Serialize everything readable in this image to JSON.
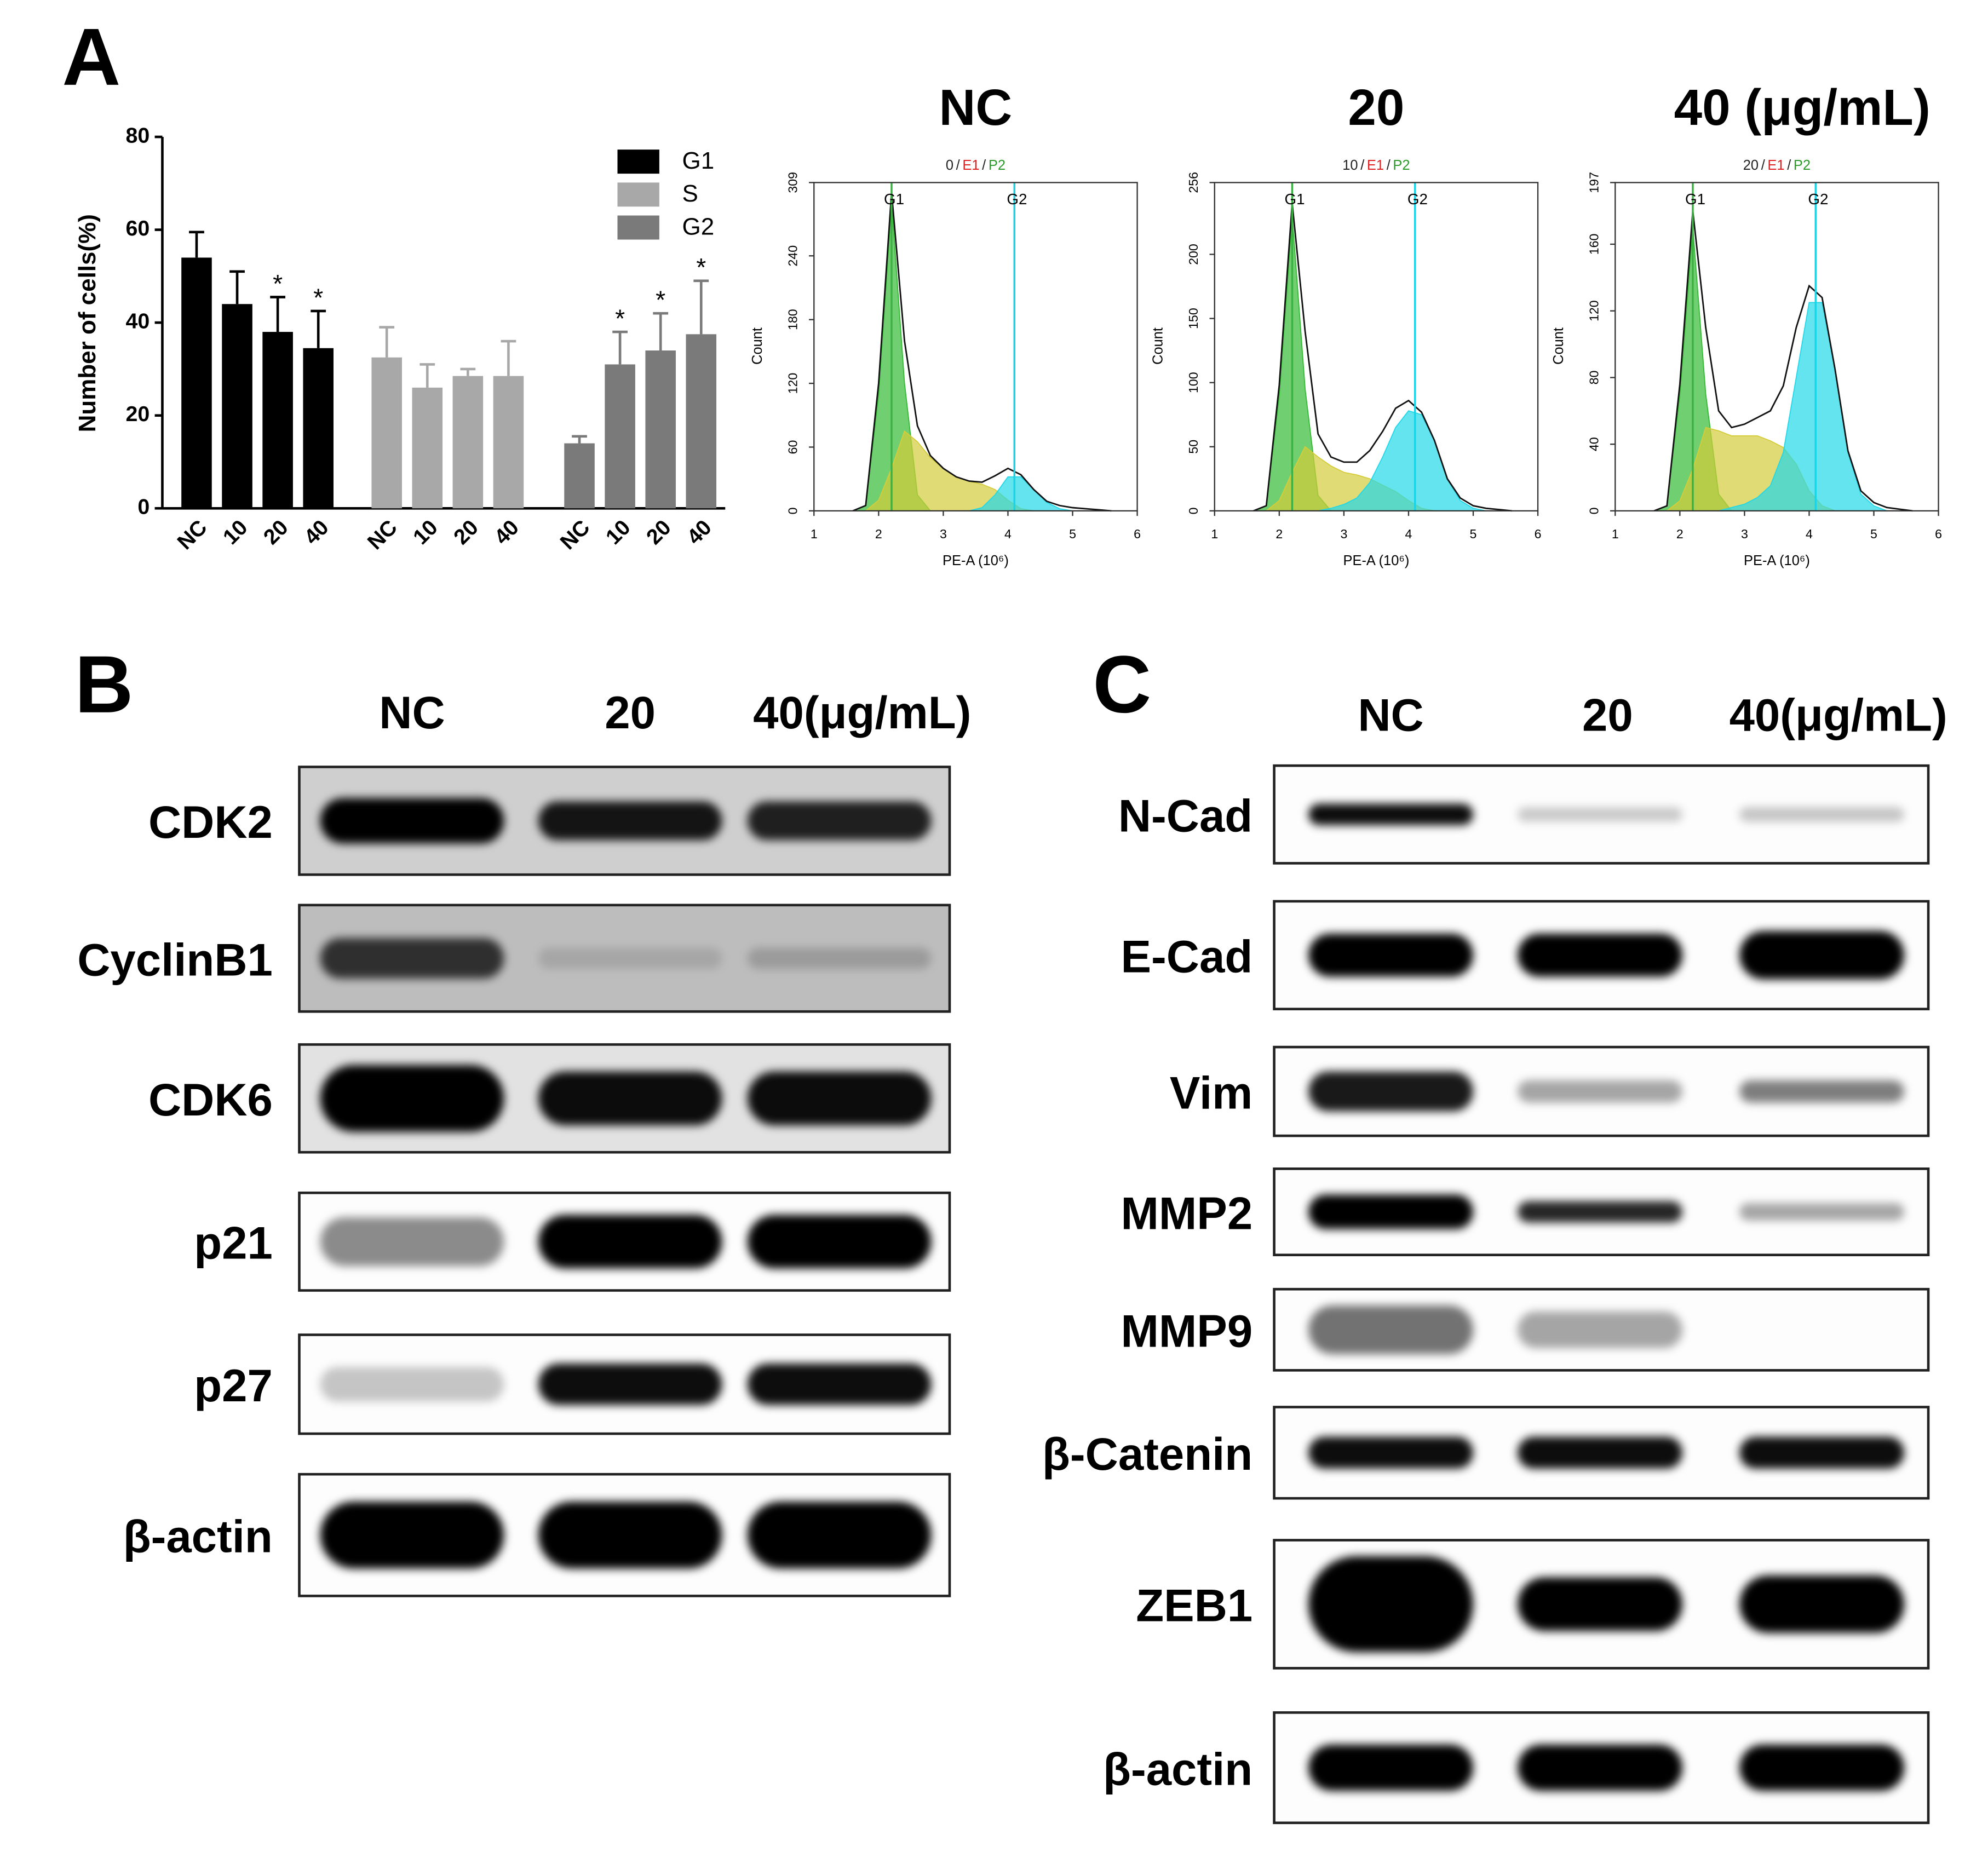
{
  "panel_labels": [
    "A",
    "B",
    "C"
  ],
  "chart_data": [
    {
      "type": "bar",
      "ylabel": "Number of cells(%)",
      "categories": [
        "NC",
        "10",
        "20",
        "40"
      ],
      "ylim": [
        0,
        80
      ],
      "yticks": [
        0,
        20,
        40,
        60,
        80
      ],
      "series": [
        {
          "name": "G1",
          "color": "#000000",
          "values": [
            54,
            44,
            38,
            34.5
          ],
          "errors": [
            5.5,
            7,
            7.5,
            8
          ],
          "significance": [
            null,
            null,
            "*",
            "*"
          ]
        },
        {
          "name": "S",
          "color": "#a8a8a8",
          "values": [
            32.5,
            26,
            28.5,
            28.5
          ],
          "errors": [
            6.5,
            5,
            1.5,
            7.5
          ],
          "significance": [
            null,
            null,
            null,
            null
          ]
        },
        {
          "name": "G2",
          "color": "#7a7a7a",
          "values": [
            14,
            31,
            34,
            37.5
          ],
          "errors": [
            1.5,
            7,
            8,
            11.5
          ],
          "significance": [
            null,
            "*",
            "*",
            "*"
          ]
        }
      ]
    },
    {
      "type": "histogram-fit",
      "title": "NC",
      "subtitle_parts": [
        "0",
        "/",
        "E1",
        "/",
        "P2"
      ],
      "xlabel": "PE-A (10⁶)",
      "ylabel": "Count",
      "xlim": [
        1,
        6
      ],
      "xticks": [
        1,
        2,
        3,
        4,
        5,
        6
      ],
      "ylim": [
        0,
        309
      ],
      "yticks": [
        0,
        60,
        120,
        180,
        240,
        309
      ],
      "gates": [
        {
          "label": "G1",
          "x": 2.2,
          "color": "#3cb043"
        },
        {
          "label": "G2",
          "x": 4.1,
          "color": "#19d3e6"
        }
      ],
      "x": [
        1.6,
        1.8,
        2.0,
        2.2,
        2.4,
        2.6,
        2.8,
        3.0,
        3.2,
        3.4,
        3.6,
        3.8,
        4.0,
        4.2,
        4.4,
        4.6,
        4.8,
        5.0,
        5.2,
        5.4,
        5.6
      ],
      "series": [
        {
          "color": "#33bb33",
          "values": [
            0,
            5,
            110,
            290,
            120,
            15,
            0,
            0,
            0,
            0,
            0,
            0,
            0,
            0,
            0,
            0,
            0,
            0,
            0,
            0,
            0
          ]
        },
        {
          "color": "#d4cc3a",
          "values": [
            0,
            0,
            10,
            40,
            75,
            65,
            50,
            40,
            32,
            28,
            25,
            20,
            10,
            2,
            0,
            0,
            0,
            0,
            0,
            0,
            0
          ]
        },
        {
          "color": "#22d8e8",
          "values": [
            0,
            0,
            0,
            0,
            0,
            0,
            0,
            0,
            0,
            0,
            3,
            15,
            32,
            32,
            20,
            8,
            2,
            0,
            0,
            0,
            0
          ]
        },
        {
          "color": "#111111",
          "values": [
            0,
            5,
            120,
            300,
            160,
            80,
            52,
            40,
            32,
            28,
            27,
            33,
            40,
            34,
            20,
            9,
            5,
            3,
            2,
            1,
            0
          ]
        }
      ]
    },
    {
      "type": "histogram-fit",
      "title": "20",
      "subtitle_parts": [
        "10",
        "/",
        "E1",
        "/",
        "P2"
      ],
      "xlabel": "PE-A (10⁶)",
      "ylabel": "Count",
      "xlim": [
        1,
        6
      ],
      "xticks": [
        1,
        2,
        3,
        4,
        5,
        6
      ],
      "ylim": [
        0,
        256
      ],
      "yticks": [
        0,
        50,
        100,
        150,
        200,
        256
      ],
      "gates": [
        {
          "label": "G1",
          "x": 2.2,
          "color": "#3cb043"
        },
        {
          "label": "G2",
          "x": 4.1,
          "color": "#19d3e6"
        }
      ],
      "x": [
        1.6,
        1.8,
        2.0,
        2.2,
        2.4,
        2.6,
        2.8,
        3.0,
        3.2,
        3.4,
        3.6,
        3.8,
        4.0,
        4.2,
        4.4,
        4.6,
        4.8,
        5.0,
        5.2,
        5.4,
        5.6
      ],
      "series": [
        {
          "color": "#33bb33",
          "values": [
            0,
            4,
            90,
            230,
            95,
            12,
            0,
            0,
            0,
            0,
            0,
            0,
            0,
            0,
            0,
            0,
            0,
            0,
            0,
            0,
            0
          ]
        },
        {
          "color": "#d4cc3a",
          "values": [
            0,
            0,
            8,
            30,
            50,
            42,
            35,
            30,
            28,
            25,
            20,
            15,
            8,
            2,
            0,
            0,
            0,
            0,
            0,
            0,
            0
          ]
        },
        {
          "color": "#22d8e8",
          "values": [
            0,
            0,
            0,
            0,
            0,
            0,
            2,
            5,
            10,
            22,
            42,
            65,
            78,
            75,
            55,
            25,
            8,
            2,
            0,
            0,
            0
          ]
        },
        {
          "color": "#111111",
          "values": [
            0,
            4,
            98,
            240,
            140,
            60,
            42,
            38,
            38,
            47,
            62,
            80,
            86,
            77,
            55,
            25,
            10,
            4,
            2,
            1,
            0
          ]
        }
      ]
    },
    {
      "type": "histogram-fit",
      "title": "40 (μg/mL)",
      "subtitle_parts": [
        "20",
        "/",
        "E1",
        "/",
        "P2"
      ],
      "xlabel": "PE-A (10⁶)",
      "ylabel": "Count",
      "xlim": [
        1,
        6
      ],
      "xticks": [
        1,
        2,
        3,
        4,
        5,
        6
      ],
      "ylim": [
        0,
        197
      ],
      "yticks": [
        0,
        40,
        80,
        120,
        160,
        197
      ],
      "gates": [
        {
          "label": "G1",
          "x": 2.2,
          "color": "#3cb043"
        },
        {
          "label": "G2",
          "x": 4.1,
          "color": "#19d3e6"
        }
      ],
      "x": [
        1.6,
        1.8,
        2.0,
        2.2,
        2.4,
        2.6,
        2.8,
        3.0,
        3.2,
        3.4,
        3.6,
        3.8,
        4.0,
        4.2,
        4.4,
        4.6,
        4.8,
        5.0,
        5.2,
        5.4,
        5.6
      ],
      "series": [
        {
          "color": "#33bb33",
          "values": [
            0,
            3,
            70,
            170,
            70,
            10,
            0,
            0,
            0,
            0,
            0,
            0,
            0,
            0,
            0,
            0,
            0,
            0,
            0,
            0,
            0
          ]
        },
        {
          "color": "#d4cc3a",
          "values": [
            0,
            0,
            6,
            25,
            50,
            48,
            45,
            45,
            45,
            42,
            38,
            28,
            12,
            3,
            0,
            0,
            0,
            0,
            0,
            0,
            0
          ]
        },
        {
          "color": "#22d8e8",
          "values": [
            0,
            0,
            0,
            0,
            0,
            0,
            2,
            4,
            8,
            15,
            35,
            80,
            125,
            125,
            85,
            35,
            10,
            3,
            0,
            0,
            0
          ]
        },
        {
          "color": "#111111",
          "values": [
            0,
            3,
            76,
            180,
            110,
            60,
            50,
            52,
            56,
            60,
            75,
            110,
            135,
            128,
            85,
            36,
            12,
            5,
            2,
            1,
            0
          ]
        }
      ]
    }
  ],
  "blots": [
    {
      "columns": [
        "NC",
        "20",
        "40(μg/mL)"
      ],
      "rows": [
        "CDK2",
        "CyclinB1",
        "CDK6",
        "p21",
        "p27",
        "β-actin"
      ]
    },
    {
      "columns": [
        "NC",
        "20",
        "40(μg/mL)"
      ],
      "rows": [
        "N-Cad",
        "E-Cad",
        "Vim",
        "MMP2",
        "MMP9",
        "β-Catenin",
        "ZEB1",
        "β-actin"
      ]
    }
  ]
}
